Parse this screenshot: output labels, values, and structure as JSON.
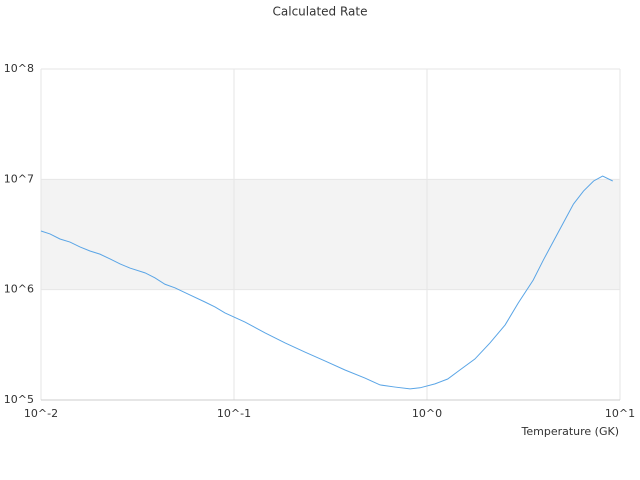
{
  "chart_data": {
    "type": "line",
    "title": "Calculated Rate",
    "x_label": "Temperature (GK)",
    "x_scale": "log",
    "y_scale": "log",
    "grid": true,
    "alternate_bands": true,
    "xlim": [
      0.01,
      10
    ],
    "ylim": [
      100000,
      100000000
    ],
    "xticks": [
      {
        "value": 0.01,
        "label": "10^-2"
      },
      {
        "value": 0.1,
        "label": "10^-1"
      },
      {
        "value": 1,
        "label": "10^0"
      },
      {
        "value": 10,
        "label": "10^1"
      }
    ],
    "yticks": [
      {
        "value": 100000,
        "label": "10^5"
      },
      {
        "value": 1000000,
        "label": "10^6"
      },
      {
        "value": 10000000,
        "label": "10^7"
      },
      {
        "value": 100000000,
        "label": "10^8"
      }
    ],
    "series": [
      {
        "color": "#5aa5e6",
        "x": [
          0.01,
          0.01113,
          0.01254,
          0.01413,
          0.01592,
          0.01794,
          0.0202,
          0.0228,
          0.0257,
          0.0289,
          0.0346,
          0.0389,
          0.0439,
          0.0494,
          0.0591,
          0.0707,
          0.0797,
          0.0898,
          0.114,
          0.145,
          0.184,
          0.233,
          0.296,
          0.376,
          0.477,
          0.571,
          0.683,
          0.817,
          0.92,
          1.1,
          1.28,
          1.48,
          1.77,
          2.12,
          2.54,
          2.97,
          3.55,
          4.01,
          4.8,
          5.74,
          6.47,
          7.3,
          8.13,
          9.17
        ],
        "values": [
          3400000,
          3200000,
          2880000,
          2700000,
          2440000,
          2240000,
          2100000,
          1900000,
          1710000,
          1570000,
          1420000,
          1280000,
          1120000,
          1040000,
          895000,
          773000,
          697000,
          615000,
          509000,
          405000,
          329000,
          272000,
          226000,
          187000,
          158000,
          137000,
          131000,
          126000,
          129000,
          140000,
          155000,
          187000,
          235000,
          329000,
          479000,
          757000,
          1220000,
          1860000,
          3340000,
          5970000,
          7830000,
          9660000,
          10700000,
          9660000
        ]
      }
    ]
  }
}
